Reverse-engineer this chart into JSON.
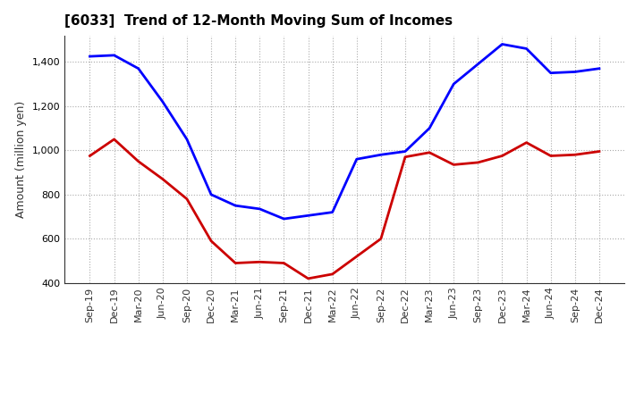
{
  "title": "[6033]  Trend of 12-Month Moving Sum of Incomes",
  "ylabel": "Amount (million yen)",
  "background_color": "#ffffff",
  "grid_color": "#aaaaaa",
  "plot_bg_color": "#ffffff",
  "x_labels": [
    "Sep-19",
    "Dec-19",
    "Mar-20",
    "Jun-20",
    "Sep-20",
    "Dec-20",
    "Mar-21",
    "Jun-21",
    "Sep-21",
    "Dec-21",
    "Mar-22",
    "Jun-22",
    "Sep-22",
    "Dec-22",
    "Mar-23",
    "Jun-23",
    "Sep-23",
    "Dec-23",
    "Mar-24",
    "Jun-24",
    "Sep-24",
    "Dec-24"
  ],
  "ordinary_income": [
    1425,
    1430,
    1370,
    1220,
    1050,
    800,
    750,
    735,
    690,
    705,
    720,
    960,
    980,
    995,
    1100,
    1300,
    1390,
    1480,
    1460,
    1350,
    1355,
    1370
  ],
  "net_income": [
    975,
    1050,
    950,
    870,
    780,
    590,
    490,
    495,
    490,
    420,
    440,
    520,
    600,
    970,
    990,
    935,
    945,
    975,
    1035,
    975,
    980,
    995
  ],
  "ordinary_color": "#0000ff",
  "net_color": "#cc0000",
  "ylim_min": 400,
  "ylim_max": 1520,
  "yticks": [
    400,
    600,
    800,
    1000,
    1200,
    1400
  ],
  "line_width": 2.0,
  "title_fontsize": 11,
  "axis_label_fontsize": 9,
  "tick_fontsize": 8,
  "legend_fontsize": 9
}
